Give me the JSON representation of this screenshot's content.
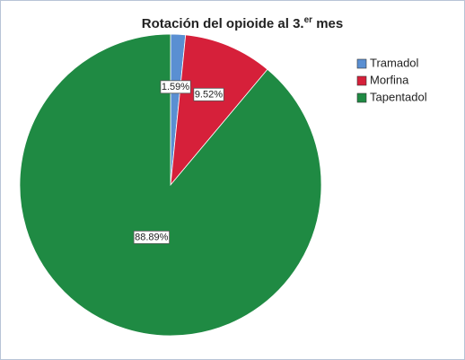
{
  "chart_data": {
    "type": "pie",
    "title": [
      "Rotación del opioide al 3.",
      "er",
      " mes"
    ],
    "categories": [
      "Tramadol",
      "Morfina",
      "Tapentadol"
    ],
    "values": [
      1.59,
      9.52,
      88.89
    ],
    "value_labels": [
      "1.59%",
      "9.52%",
      "88.89%"
    ],
    "colors": [
      "#5a8fd2",
      "#d6203a",
      "#1f8a43"
    ],
    "legend": "right"
  }
}
